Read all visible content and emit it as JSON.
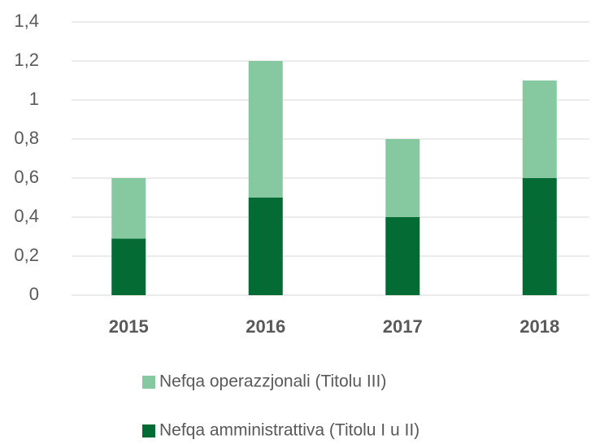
{
  "chart_data": {
    "type": "bar",
    "stacked": true,
    "categories": [
      "2015",
      "2016",
      "2017",
      "2018"
    ],
    "series": [
      {
        "name": "Nefqa amministrattiva (Titolu I u II)",
        "color": "#056b34",
        "values": [
          0.29,
          0.5,
          0.4,
          0.6
        ]
      },
      {
        "name": "Nefqa operazzjonali (Titolu III)",
        "color": "#86c8a0",
        "values": [
          0.31,
          0.7,
          0.4,
          0.5
        ]
      }
    ],
    "ylim": [
      0,
      1.4
    ],
    "yticks": [
      0,
      {
        "value": 0.2,
        "label": "0,2"
      },
      {
        "value": 0.4,
        "label": "0,4"
      },
      {
        "value": 0.6,
        "label": "0,6"
      },
      {
        "value": 0.8,
        "label": "0,8"
      },
      1,
      {
        "value": 1.2,
        "label": "1,2"
      },
      {
        "value": 1.4,
        "label": "1,4"
      }
    ],
    "grid": true,
    "legend": "bottom"
  }
}
